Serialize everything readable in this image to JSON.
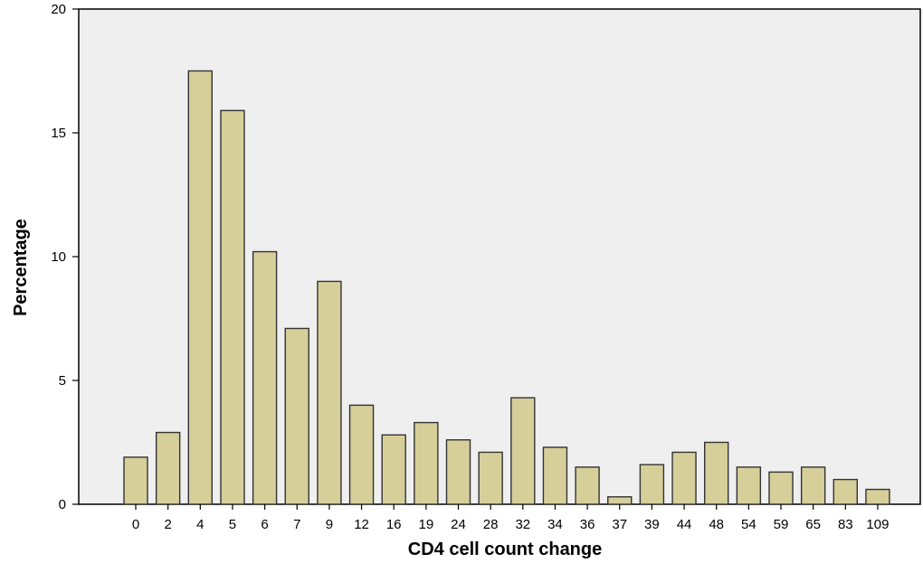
{
  "chart_data": {
    "type": "bar",
    "title": "",
    "xlabel": "CD4 cell count change",
    "ylabel": "Percentage",
    "ylim": [
      0,
      20
    ],
    "yticks": [
      0,
      5,
      10,
      15,
      20
    ],
    "grid": false,
    "categories": [
      "0",
      "2",
      "4",
      "5",
      "6",
      "7",
      "9",
      "12",
      "16",
      "19",
      "24",
      "28",
      "32",
      "34",
      "36",
      "37",
      "39",
      "44",
      "48",
      "54",
      "59",
      "65",
      "83",
      "109"
    ],
    "values": [
      1.9,
      2.9,
      17.5,
      15.9,
      10.2,
      7.1,
      9.0,
      4.0,
      2.8,
      3.3,
      2.6,
      2.1,
      4.3,
      2.3,
      1.5,
      0.3,
      1.6,
      2.1,
      2.5,
      1.5,
      1.3,
      1.5,
      1.0,
      0.6
    ],
    "colors": {
      "bar_fill": "#d6cf9a",
      "bar_stroke": "#333333",
      "plot_background": "#efefef",
      "axis": "#000000"
    }
  }
}
